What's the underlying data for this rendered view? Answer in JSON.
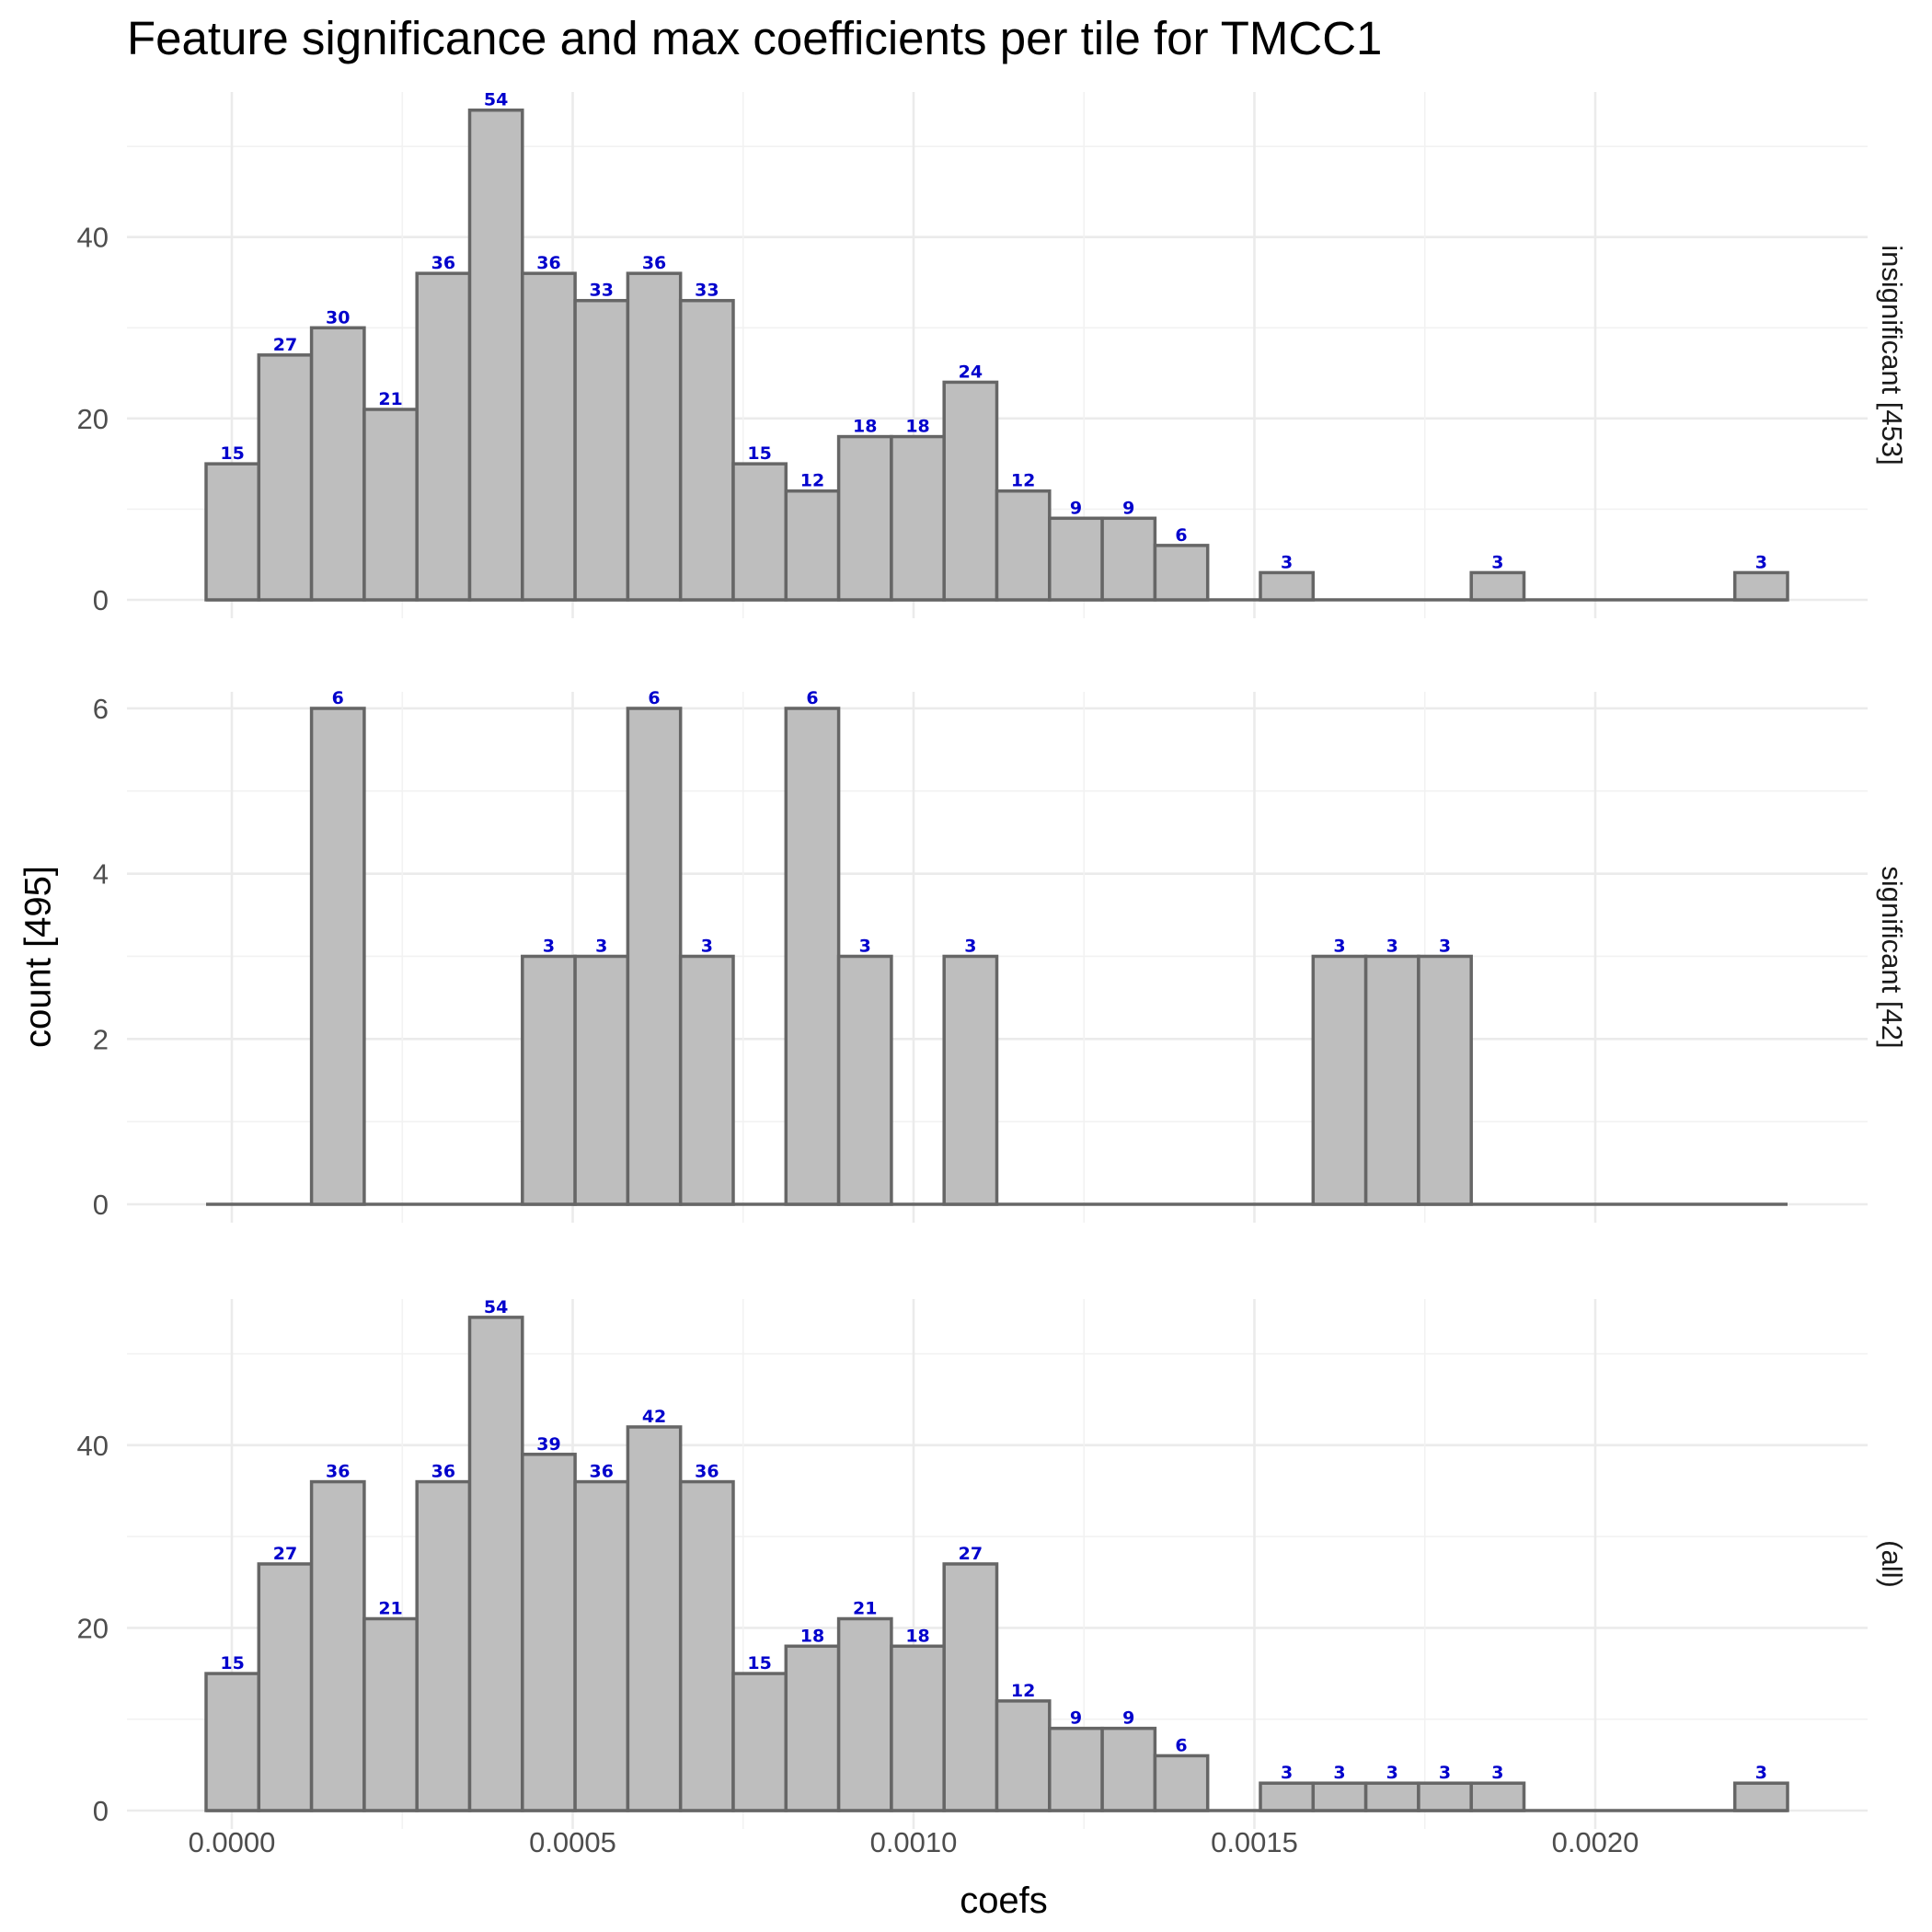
{
  "chart_data": {
    "type": "bar",
    "title": "Feature significance and max coefficients per tile for TMCC1",
    "xlabel": "coefs",
    "ylabel": "count [495]",
    "bin_centers": [
      0.0,
      0.0001556,
      0.0003112,
      0.0004668,
      0.0006224,
      0.000778,
      0.0009336,
      0.0010892,
      0.0012448,
      0.0014004,
      0.001556,
      0.0017116,
      0.0018672,
      0.0020228,
      0.0021784,
      7.78e-05,
      0.0002334,
      0.000389,
      0.0005446,
      0.0007002,
      0.0008558,
      0.0010114,
      0.001167,
      0.0013226,
      0.0014782,
      0.0016338,
      0.0017894,
      0.001945,
      0.0021006,
      0.0022562
    ],
    "x_ticks": [
      "0.0000",
      "0.0005",
      "0.0010",
      "0.0015",
      "0.0020"
    ],
    "panels": [
      {
        "strip": "insignificant [453]",
        "y_ticks": [
          "0",
          "20",
          "40"
        ],
        "ylim": [
          0,
          56
        ],
        "values": [
          15,
          27,
          30,
          21,
          36,
          54,
          36,
          33,
          36,
          33,
          15,
          12,
          18,
          18,
          24,
          12,
          9,
          9,
          6,
          0,
          3,
          0,
          0,
          0,
          3,
          0,
          0,
          0,
          0,
          3
        ]
      },
      {
        "strip": "significant [42]",
        "y_ticks": [
          "0",
          "2",
          "4",
          "6"
        ],
        "ylim": [
          0,
          6.2
        ],
        "values": [
          0,
          0,
          6,
          0,
          0,
          0,
          3,
          3,
          6,
          3,
          0,
          6,
          3,
          0,
          3,
          0,
          0,
          0,
          0,
          0,
          0,
          3,
          3,
          3,
          0,
          0,
          0,
          0,
          0,
          0
        ]
      },
      {
        "strip": "(all)",
        "y_ticks": [
          "0",
          "20",
          "40"
        ],
        "ylim": [
          0,
          56
        ],
        "values": [
          15,
          27,
          36,
          21,
          36,
          54,
          39,
          36,
          42,
          36,
          15,
          18,
          21,
          18,
          27,
          12,
          9,
          9,
          6,
          0,
          3,
          3,
          3,
          3,
          3,
          0,
          0,
          0,
          0,
          3
        ]
      }
    ]
  }
}
